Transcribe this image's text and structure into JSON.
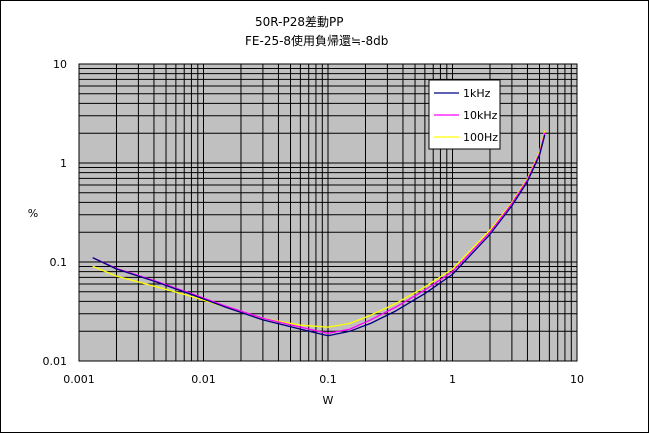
{
  "chart_data": {
    "type": "line",
    "title_lines": [
      "50R-P28差動PP",
      "FE-25-8使用負帰還≒-8db"
    ],
    "xlabel": "W",
    "ylabel": "%",
    "x_scale": "log",
    "y_scale": "log",
    "xlim": [
      0.001,
      10
    ],
    "ylim": [
      0.01,
      10
    ],
    "x_ticks": [
      "0.001",
      "0.01",
      "0.1",
      "1",
      "10"
    ],
    "y_ticks": [
      "0.01",
      "0.1",
      "1",
      "10"
    ],
    "grid": true,
    "plot_background": "#c0c0c0",
    "legend_position": "top-right",
    "series": [
      {
        "name": "1kHz",
        "color": "#000080",
        "x": [
          0.0013,
          0.002,
          0.004,
          0.008,
          0.015,
          0.03,
          0.06,
          0.1,
          0.15,
          0.22,
          0.35,
          0.6,
          1.0,
          2.0,
          3.0,
          4.0,
          5.0,
          5.5
        ],
        "y": [
          0.11,
          0.085,
          0.064,
          0.047,
          0.035,
          0.026,
          0.021,
          0.018,
          0.02,
          0.024,
          0.032,
          0.048,
          0.075,
          0.19,
          0.37,
          0.65,
          1.2,
          1.9
        ]
      },
      {
        "name": "10kHz",
        "color": "#ff00ff",
        "x": [
          0.0013,
          0.002,
          0.004,
          0.008,
          0.015,
          0.03,
          0.06,
          0.1,
          0.15,
          0.22,
          0.35,
          0.6,
          1.0,
          2.0,
          3.0,
          4.0,
          5.0,
          5.5
        ],
        "y": [
          0.11,
          0.086,
          0.065,
          0.048,
          0.036,
          0.027,
          0.022,
          0.019,
          0.021,
          0.026,
          0.035,
          0.052,
          0.08,
          0.2,
          0.39,
          0.68,
          1.25,
          2.0
        ]
      },
      {
        "name": "100Hz",
        "color": "#ffff00",
        "x": [
          0.0013,
          0.002,
          0.004,
          0.008,
          0.015,
          0.03,
          0.06,
          0.1,
          0.15,
          0.22,
          0.35,
          0.6,
          1.0,
          2.0,
          3.0,
          4.0,
          5.0,
          5.5
        ],
        "y": [
          0.09,
          0.072,
          0.057,
          0.045,
          0.035,
          0.027,
          0.023,
          0.022,
          0.024,
          0.029,
          0.038,
          0.056,
          0.085,
          0.21,
          0.4,
          0.7,
          1.3,
          2.1
        ]
      }
    ]
  }
}
